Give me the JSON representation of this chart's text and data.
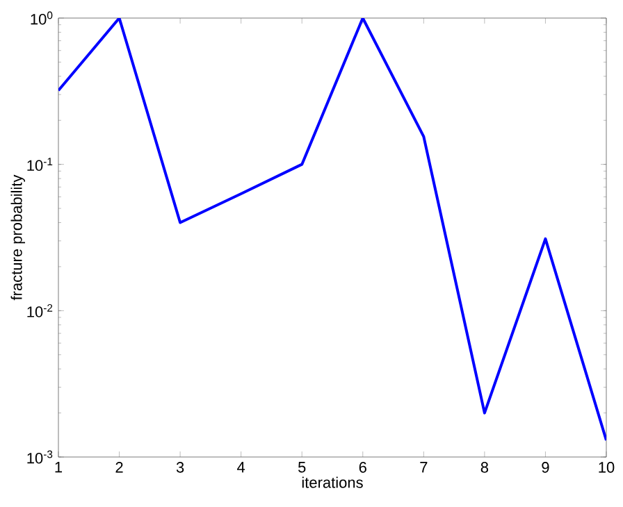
{
  "chart_data": {
    "type": "line",
    "xlabel": "iterations",
    "ylabel": "fracture probability",
    "log": "y",
    "x": [
      1,
      2,
      3,
      4,
      5,
      6,
      7,
      8,
      9,
      10
    ],
    "series": [
      {
        "color": "#0000ff",
        "values": [
          0.32,
          1,
          0.04,
          0.063,
          0.1,
          1,
          0.155,
          0.002,
          0.031,
          0.0013
        ]
      }
    ],
    "xlim": [
      1,
      10
    ],
    "xticks": [
      1,
      2,
      3,
      4,
      5,
      6,
      7,
      8,
      9,
      10
    ],
    "ylim": [
      0.001,
      1
    ],
    "yticks": [
      {
        "value": 0.001,
        "label": "10$^{-3}$"
      },
      {
        "value": 0.01,
        "label": "10$^{-2}$"
      },
      {
        "value": 0.1,
        "label": "10$^{-1}$"
      },
      {
        "value": 1,
        "label": "10$^{0}$"
      }
    ],
    "grid": false,
    "marker": "none",
    "line_style": "solid"
  }
}
